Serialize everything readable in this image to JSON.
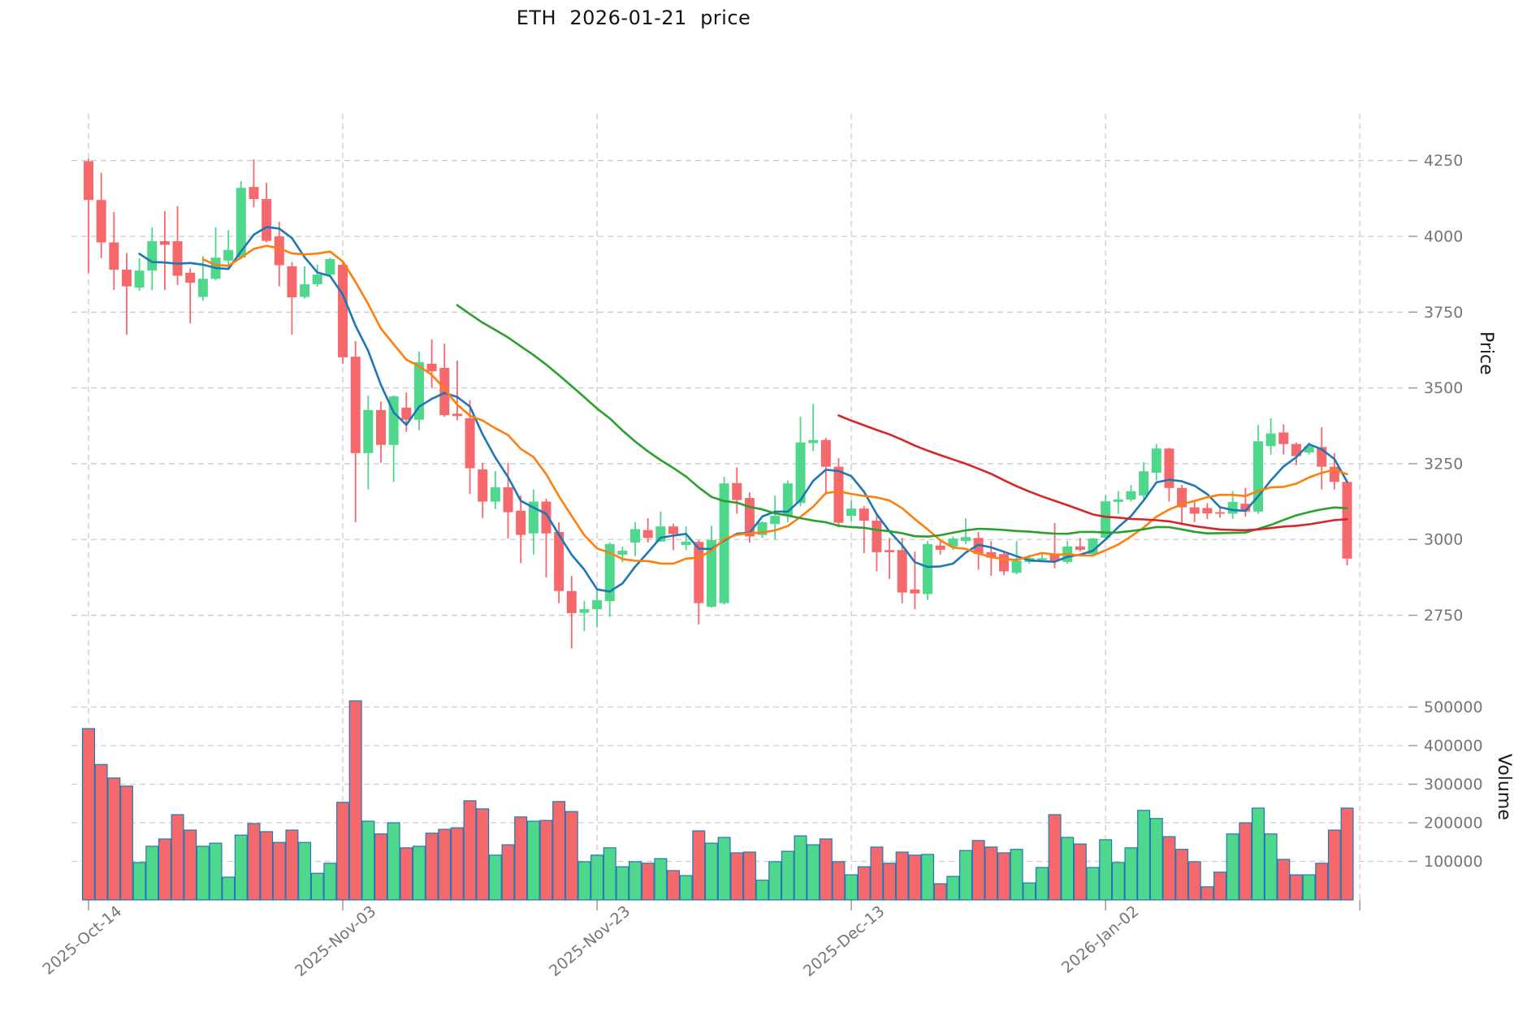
{
  "title": "ETH  2026-01-21  price",
  "axes": {
    "price_label": "Price",
    "volume_label": "Volume",
    "price_ticks": [
      4250,
      4000,
      3750,
      3500,
      3250,
      3000,
      2750
    ],
    "volume_ticks": [
      500000,
      400000,
      300000,
      200000,
      100000
    ],
    "x_ticks": [
      {
        "label": "2025-Oct-14",
        "index": 0
      },
      {
        "label": "2025-Nov-03",
        "index": 20
      },
      {
        "label": "2025-Nov-23",
        "index": 40
      },
      {
        "label": "2025-Dec-13",
        "index": 60
      },
      {
        "label": "2026-Jan-02",
        "index": 80
      },
      {
        "label": "",
        "index": 100
      }
    ]
  },
  "chart_data": {
    "type": "candlestick",
    "title": "ETH  2026-01-21  price",
    "ylabel": "Price",
    "ylabel2": "Volume",
    "price_range": [
      2609,
      4512
    ],
    "volume_range": [
      0,
      585000
    ],
    "grid": true,
    "dates": [
      "2025-10-14",
      "2025-10-15",
      "2025-10-16",
      "2025-10-17",
      "2025-10-18",
      "2025-10-19",
      "2025-10-20",
      "2025-10-21",
      "2025-10-22",
      "2025-10-23",
      "2025-10-24",
      "2025-10-25",
      "2025-10-26",
      "2025-10-27",
      "2025-10-28",
      "2025-10-29",
      "2025-10-30",
      "2025-10-31",
      "2025-11-01",
      "2025-11-02",
      "2025-11-03",
      "2025-11-04",
      "2025-11-05",
      "2025-11-06",
      "2025-11-07",
      "2025-11-08",
      "2025-11-09",
      "2025-11-10",
      "2025-11-11",
      "2025-11-12",
      "2025-11-13",
      "2025-11-14",
      "2025-11-15",
      "2025-11-16",
      "2025-11-17",
      "2025-11-18",
      "2025-11-19",
      "2025-11-20",
      "2025-11-21",
      "2025-11-22",
      "2025-11-23",
      "2025-11-24",
      "2025-11-25",
      "2025-11-26",
      "2025-11-27",
      "2025-11-28",
      "2025-11-29",
      "2025-11-30",
      "2025-12-01",
      "2025-12-02",
      "2025-12-03",
      "2025-12-04",
      "2025-12-05",
      "2025-12-06",
      "2025-12-07",
      "2025-12-08",
      "2025-12-09",
      "2025-12-10",
      "2025-12-11",
      "2025-12-12",
      "2025-12-13",
      "2025-12-14",
      "2025-12-15",
      "2025-12-16",
      "2025-12-17",
      "2025-12-18",
      "2025-12-19",
      "2025-12-20",
      "2025-12-21",
      "2025-12-22",
      "2025-12-23",
      "2025-12-24",
      "2025-12-25",
      "2025-12-26",
      "2025-12-27",
      "2025-12-28",
      "2025-12-29",
      "2025-12-30",
      "2025-12-31",
      "2026-01-01",
      "2026-01-02",
      "2026-01-03",
      "2026-01-04",
      "2026-01-05",
      "2026-01-06",
      "2026-01-07",
      "2026-01-08",
      "2026-01-09",
      "2026-01-10",
      "2026-01-11",
      "2026-01-12",
      "2026-01-13",
      "2026-01-14",
      "2026-01-15",
      "2026-01-16",
      "2026-01-17",
      "2026-01-18",
      "2026-01-19",
      "2026-01-20",
      "2026-01-21"
    ],
    "ohlc": [
      [
        4248,
        4256,
        3880,
        4120
      ],
      [
        4120,
        4210,
        3928,
        3980
      ],
      [
        3980,
        4080,
        3823,
        3890
      ],
      [
        3890,
        3945,
        3675,
        3835
      ],
      [
        3831,
        3928,
        3820,
        3887
      ],
      [
        3887,
        4030,
        3822,
        3984
      ],
      [
        3984,
        4083,
        3823,
        3972
      ],
      [
        3984,
        4100,
        3840,
        3870
      ],
      [
        3880,
        3895,
        3713,
        3847
      ],
      [
        3800,
        3935,
        3788,
        3860
      ],
      [
        3860,
        4030,
        3855,
        3930
      ],
      [
        3920,
        4020,
        3895,
        3955
      ],
      [
        3930,
        4182,
        3925,
        4160
      ],
      [
        4163,
        4254,
        4096,
        4123
      ],
      [
        4123,
        4177,
        3980,
        3985
      ],
      [
        4000,
        4048,
        3835,
        3905
      ],
      [
        3901,
        3915,
        3675,
        3799
      ],
      [
        3800,
        3901,
        3795,
        3842
      ],
      [
        3842,
        3906,
        3834,
        3874
      ],
      [
        3874,
        3930,
        3868,
        3925
      ],
      [
        3906,
        3910,
        3580,
        3601
      ],
      [
        3603,
        3655,
        3057,
        3285
      ],
      [
        3285,
        3475,
        3165,
        3427
      ],
      [
        3427,
        3455,
        3253,
        3312
      ],
      [
        3312,
        3475,
        3190,
        3472
      ],
      [
        3435,
        3485,
        3355,
        3395
      ],
      [
        3395,
        3620,
        3360,
        3585
      ],
      [
        3580,
        3660,
        3500,
        3555
      ],
      [
        3566,
        3646,
        3405,
        3410
      ],
      [
        3415,
        3590,
        3393,
        3407
      ],
      [
        3400,
        3460,
        3150,
        3235
      ],
      [
        3231,
        3253,
        3071,
        3125
      ],
      [
        3125,
        3226,
        3100,
        3172
      ],
      [
        3172,
        3253,
        3003,
        3090
      ],
      [
        3095,
        3145,
        2922,
        3015
      ],
      [
        3020,
        3165,
        2950,
        3125
      ],
      [
        3125,
        3135,
        2875,
        3020
      ],
      [
        3025,
        3057,
        2790,
        2830
      ],
      [
        2830,
        2880,
        2641,
        2757
      ],
      [
        2758,
        2797,
        2698,
        2770
      ],
      [
        2770,
        2832,
        2710,
        2800
      ],
      [
        2797,
        2990,
        2745,
        2985
      ],
      [
        2950,
        2977,
        2925,
        2963
      ],
      [
        2990,
        3057,
        2945,
        3034
      ],
      [
        3031,
        3070,
        2990,
        3005
      ],
      [
        2993,
        3092,
        2992,
        3043
      ],
      [
        3043,
        3052,
        2965,
        3018
      ],
      [
        2982,
        3043,
        2965,
        2993
      ],
      [
        2992,
        2998,
        2720,
        2790
      ],
      [
        2778,
        3045,
        2775,
        2998
      ],
      [
        2790,
        3207,
        2785,
        3185
      ],
      [
        3186,
        3238,
        3085,
        3130
      ],
      [
        3137,
        3155,
        2990,
        3010
      ],
      [
        3015,
        3060,
        3005,
        3057
      ],
      [
        3051,
        3145,
        3000,
        3078
      ],
      [
        3078,
        3195,
        3057,
        3185
      ],
      [
        3120,
        3405,
        3110,
        3320
      ],
      [
        3318,
        3447,
        3292,
        3328
      ],
      [
        3328,
        3335,
        3150,
        3240
      ],
      [
        3240,
        3268,
        3040,
        3055
      ],
      [
        3078,
        3130,
        3058,
        3102
      ],
      [
        3102,
        3110,
        2955,
        3062
      ],
      [
        3062,
        3080,
        2895,
        2958
      ],
      [
        2965,
        3005,
        2870,
        2958
      ],
      [
        2965,
        3005,
        2790,
        2825
      ],
      [
        2835,
        2960,
        2770,
        2822
      ],
      [
        2820,
        2995,
        2800,
        2985
      ],
      [
        2980,
        2995,
        2950,
        2966
      ],
      [
        2977,
        3010,
        2965,
        3003
      ],
      [
        2995,
        3070,
        2985,
        3008
      ],
      [
        3005,
        3025,
        2900,
        2952
      ],
      [
        2958,
        2995,
        2880,
        2940
      ],
      [
        2952,
        2960,
        2882,
        2895
      ],
      [
        2890,
        2995,
        2885,
        2930
      ],
      [
        2926,
        2950,
        2920,
        2939
      ],
      [
        2932,
        2955,
        2928,
        2938
      ],
      [
        2950,
        3055,
        2905,
        2930
      ],
      [
        2926,
        2995,
        2920,
        2977
      ],
      [
        2977,
        3005,
        2960,
        2966
      ],
      [
        2952,
        3005,
        2948,
        3003
      ],
      [
        3006,
        3145,
        3002,
        3126
      ],
      [
        3124,
        3160,
        3085,
        3132
      ],
      [
        3132,
        3180,
        3125,
        3159
      ],
      [
        3145,
        3255,
        3135,
        3225
      ],
      [
        3220,
        3315,
        3195,
        3300
      ],
      [
        3300,
        3302,
        3125,
        3170
      ],
      [
        3170,
        3180,
        3048,
        3106
      ],
      [
        3106,
        3124,
        3058,
        3085
      ],
      [
        3104,
        3120,
        3068,
        3086
      ],
      [
        3090,
        3105,
        3072,
        3085
      ],
      [
        3085,
        3160,
        3068,
        3124
      ],
      [
        3118,
        3170,
        3075,
        3092
      ],
      [
        3092,
        3378,
        3085,
        3324
      ],
      [
        3308,
        3400,
        3280,
        3350
      ],
      [
        3353,
        3380,
        3280,
        3315
      ],
      [
        3315,
        3320,
        3245,
        3275
      ],
      [
        3287,
        3320,
        3280,
        3308
      ],
      [
        3305,
        3370,
        3165,
        3240
      ],
      [
        3240,
        3285,
        3165,
        3190
      ],
      [
        3190,
        3195,
        2915,
        2937
      ]
    ],
    "volume": [
      444000,
      351000,
      316000,
      295000,
      97000,
      139000,
      158000,
      221000,
      181000,
      139000,
      147000,
      59000,
      168000,
      198000,
      177000,
      149000,
      181000,
      149000,
      69000,
      95000,
      253000,
      516000,
      204000,
      171000,
      200000,
      135000,
      139000,
      173000,
      183000,
      187000,
      257000,
      236000,
      116000,
      143000,
      215000,
      204000,
      206000,
      255000,
      229000,
      99000,
      116000,
      135000,
      86000,
      99000,
      95000,
      107000,
      76000,
      63000,
      179000,
      147000,
      162000,
      122000,
      124000,
      51000,
      99000,
      126000,
      166000,
      143000,
      158000,
      99000,
      65000,
      86000,
      137000,
      95000,
      124000,
      116000,
      118000,
      42000,
      61000,
      128000,
      154000,
      137000,
      122000,
      131000,
      44000,
      84000,
      221000,
      162000,
      145000,
      84000,
      156000,
      97000,
      135000,
      232000,
      211000,
      164000,
      131000,
      99000,
      34000,
      72000,
      171000,
      200000,
      238000,
      171000,
      105000,
      65000,
      65000,
      95000,
      181000,
      238000
    ],
    "moving_averages": [
      {
        "label": "SMA5",
        "window": 5,
        "color": "#1f77b4"
      },
      {
        "label": "SMA10",
        "window": 10,
        "color": "#ff7f0e"
      },
      {
        "label": "SMA30",
        "window": 30,
        "color": "#2ca02c"
      },
      {
        "label": "SMA60",
        "window": 60,
        "color": "#d62728"
      }
    ],
    "colors": {
      "up": "#4fd88b",
      "down": "#f5696d",
      "volume_edge": "#2079b4",
      "grid": "#cdcdcd",
      "tick_text": "#757575",
      "title_text": "#141414"
    }
  }
}
